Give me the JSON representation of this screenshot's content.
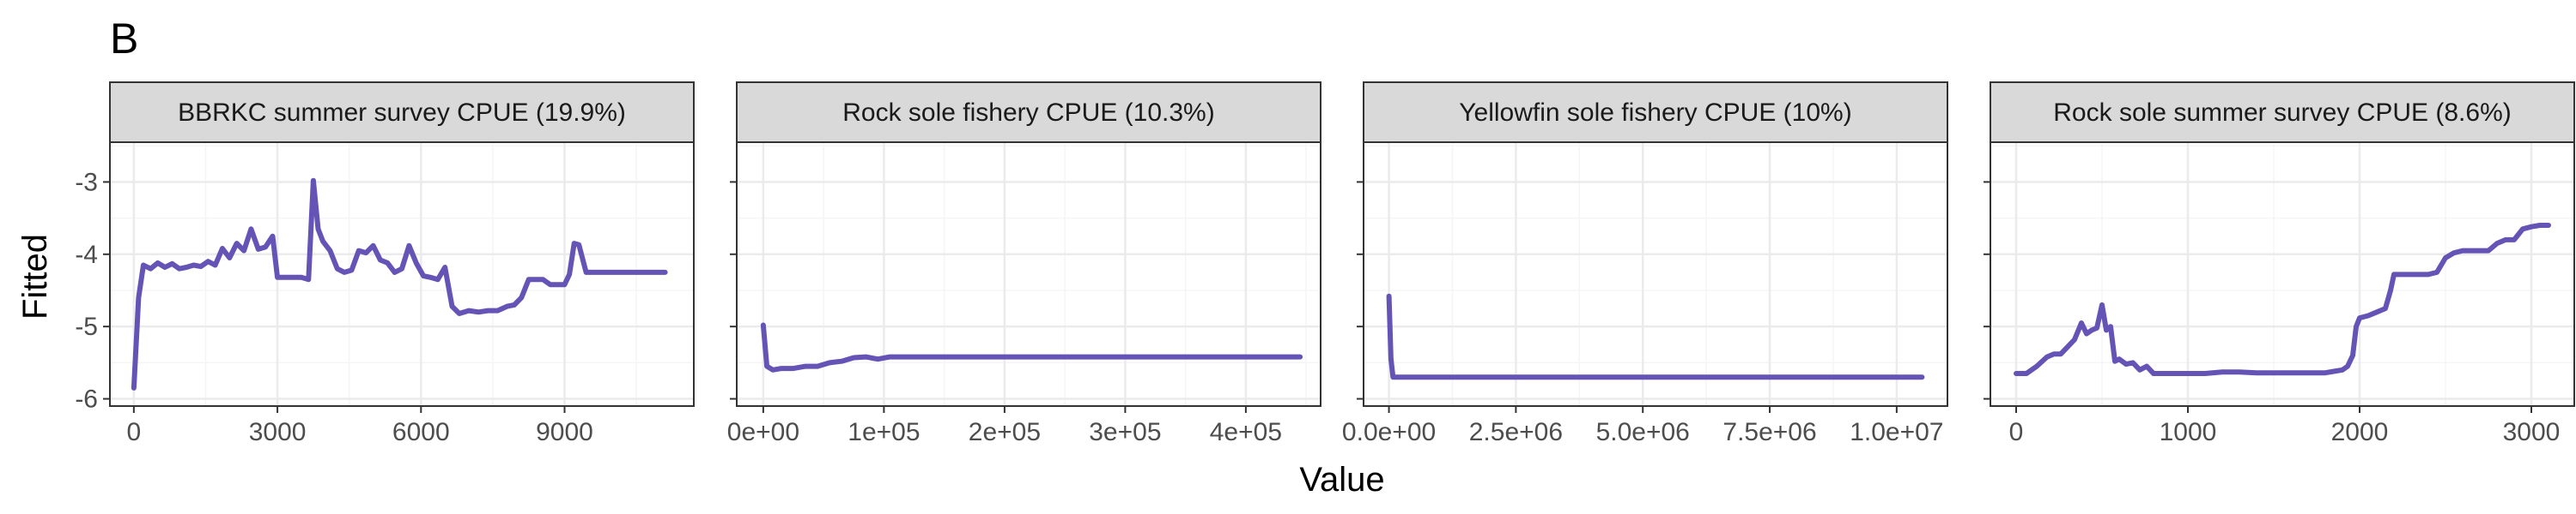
{
  "figure": {
    "tag": "B",
    "ylabel": "Fitted",
    "xlabel": "Value"
  },
  "colors": {
    "line": "#6554b5",
    "strip_bg": "#d9d9d9",
    "grid_major": "#ebebeb",
    "grid_minor": "#f5f5f5",
    "panel_border": "#333333"
  },
  "chart_data": [
    {
      "type": "line",
      "title": "BBRKC summer survey CPUE (19.9%)",
      "xlim": [
        -500,
        11700
      ],
      "ylim": [
        -6.1,
        -2.45
      ],
      "x_ticks": [
        0,
        3000,
        6000,
        9000
      ],
      "x_tick_labels": [
        "0",
        "3000",
        "6000",
        "9000"
      ],
      "y_ticks": [
        -6,
        -5,
        -4,
        -3
      ],
      "y_tick_labels": [
        "-6",
        "-5",
        "-4",
        "-3"
      ],
      "series": [
        {
          "x": [
            0,
            100,
            200,
            350,
            500,
            650,
            800,
            950,
            1100,
            1250,
            1400,
            1550,
            1700,
            1850,
            2000,
            2150,
            2300,
            2450,
            2600,
            2750,
            2900,
            3000,
            3100,
            3300,
            3500,
            3650,
            3750,
            3850,
            3950,
            4100,
            4250,
            4400,
            4550,
            4700,
            4850,
            5000,
            5150,
            5300,
            5450,
            5600,
            5750,
            5900,
            6050,
            6200,
            6350,
            6500,
            6650,
            6800,
            7000,
            7200,
            7400,
            7600,
            7800,
            7950,
            8100,
            8250,
            8400,
            8550,
            8700,
            8850,
            9000,
            9100,
            9200,
            9300,
            9450,
            9600,
            10000,
            10500,
            11100
          ],
          "y": [
            -5.85,
            -4.6,
            -4.15,
            -4.2,
            -4.12,
            -4.18,
            -4.13,
            -4.2,
            -4.18,
            -4.15,
            -4.17,
            -4.1,
            -4.15,
            -3.92,
            -4.05,
            -3.85,
            -3.95,
            -3.65,
            -3.93,
            -3.9,
            -3.75,
            -4.32,
            -4.32,
            -4.32,
            -4.32,
            -4.35,
            -2.98,
            -3.65,
            -3.82,
            -3.95,
            -4.2,
            -4.25,
            -4.22,
            -3.95,
            -3.98,
            -3.88,
            -4.08,
            -4.12,
            -4.25,
            -4.2,
            -3.88,
            -4.12,
            -4.3,
            -4.32,
            -4.35,
            -4.18,
            -4.72,
            -4.82,
            -4.78,
            -4.8,
            -4.78,
            -4.78,
            -4.72,
            -4.7,
            -4.6,
            -4.35,
            -4.35,
            -4.35,
            -4.42,
            -4.42,
            -4.42,
            -4.28,
            -3.85,
            -3.87,
            -4.25,
            -4.25,
            -4.25,
            -4.25,
            -4.25
          ]
        }
      ]
    },
    {
      "type": "line",
      "title": "Rock sole fishery CPUE (10.3%)",
      "xlim": [
        -22000,
        462000
      ],
      "ylim": [
        -6.1,
        -2.45
      ],
      "x_ticks": [
        0,
        100000,
        200000,
        300000,
        400000
      ],
      "x_tick_labels": [
        "0e+00",
        "1e+05",
        "2e+05",
        "3e+05",
        "4e+05"
      ],
      "y_ticks": [
        -6,
        -5,
        -4,
        -3
      ],
      "series": [
        {
          "x": [
            0,
            3000,
            8000,
            15000,
            25000,
            35000,
            45000,
            55000,
            65000,
            75000,
            85000,
            95000,
            105000,
            200000,
            300000,
            400000,
            445000
          ],
          "y": [
            -4.98,
            -5.55,
            -5.6,
            -5.58,
            -5.58,
            -5.55,
            -5.55,
            -5.5,
            -5.48,
            -5.43,
            -5.42,
            -5.45,
            -5.42,
            -5.42,
            -5.42,
            -5.42,
            -5.42
          ]
        }
      ]
    },
    {
      "type": "line",
      "title": "Yellowfin sole fishery CPUE (10%)",
      "xlim": [
        -500000,
        11000000
      ],
      "ylim": [
        -6.1,
        -2.45
      ],
      "x_ticks": [
        0,
        2500000,
        5000000,
        7500000,
        10000000
      ],
      "x_tick_labels": [
        "0.0e+00",
        "2.5e+06",
        "5.0e+06",
        "7.5e+06",
        "1.0e+07"
      ],
      "y_ticks": [
        -6,
        -5,
        -4,
        -3
      ],
      "series": [
        {
          "x": [
            0,
            40000,
            80000,
            200000,
            2000000,
            5000000,
            8000000,
            10500000
          ],
          "y": [
            -4.58,
            -5.45,
            -5.7,
            -5.7,
            -5.7,
            -5.7,
            -5.7,
            -5.7
          ]
        }
      ]
    },
    {
      "type": "line",
      "title": "Rock sole summer survey CPUE (8.6%)",
      "xlim": [
        -150,
        3250
      ],
      "ylim": [
        -6.1,
        -2.45
      ],
      "x_ticks": [
        0,
        1000,
        2000,
        3000
      ],
      "x_tick_labels": [
        "0",
        "1000",
        "2000",
        "3000"
      ],
      "y_ticks": [
        -6,
        -5,
        -4,
        -3
      ],
      "series": [
        {
          "x": [
            0,
            60,
            120,
            180,
            220,
            260,
            300,
            340,
            380,
            410,
            440,
            470,
            500,
            525,
            550,
            575,
            600,
            640,
            680,
            720,
            760,
            800,
            850,
            900,
            1000,
            1100,
            1200,
            1300,
            1400,
            1500,
            1600,
            1700,
            1800,
            1850,
            1900,
            1930,
            1960,
            1980,
            2000,
            2050,
            2100,
            2150,
            2180,
            2200,
            2300,
            2400,
            2450,
            2500,
            2550,
            2600,
            2650,
            2700,
            2750,
            2800,
            2850,
            2900,
            2950,
            3000,
            3050,
            3100
          ],
          "y": [
            -5.65,
            -5.65,
            -5.55,
            -5.42,
            -5.38,
            -5.38,
            -5.28,
            -5.18,
            -4.95,
            -5.1,
            -5.05,
            -5.02,
            -4.7,
            -5.05,
            -5.0,
            -5.48,
            -5.45,
            -5.52,
            -5.5,
            -5.6,
            -5.55,
            -5.65,
            -5.65,
            -5.65,
            -5.65,
            -5.65,
            -5.63,
            -5.63,
            -5.64,
            -5.64,
            -5.64,
            -5.64,
            -5.64,
            -5.62,
            -5.6,
            -5.55,
            -5.4,
            -5.0,
            -4.88,
            -4.85,
            -4.8,
            -4.75,
            -4.5,
            -4.28,
            -4.28,
            -4.28,
            -4.25,
            -4.05,
            -3.98,
            -3.95,
            -3.95,
            -3.95,
            -3.95,
            -3.85,
            -3.8,
            -3.8,
            -3.65,
            -3.62,
            -3.6,
            -3.6
          ]
        }
      ]
    }
  ]
}
